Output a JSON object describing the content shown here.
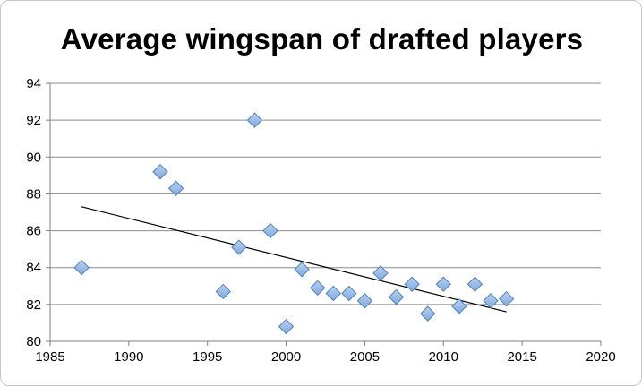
{
  "chart_data": {
    "type": "scatter",
    "title": "Average wingspan of drafted players",
    "xlabel": "",
    "ylabel": "",
    "xlim": [
      1985,
      2020
    ],
    "ylim": [
      80,
      94
    ],
    "xticks": [
      1985,
      1990,
      1995,
      2000,
      2005,
      2010,
      2015,
      2020
    ],
    "yticks": [
      80,
      82,
      84,
      86,
      88,
      90,
      92,
      94
    ],
    "grid": "horizontal",
    "legend": "none",
    "series": [
      {
        "marker": "diamond",
        "color": "#8db4e2",
        "points": [
          {
            "x": 1987,
            "y": 84.0
          },
          {
            "x": 1992,
            "y": 89.2
          },
          {
            "x": 1993,
            "y": 88.3
          },
          {
            "x": 1996,
            "y": 82.7
          },
          {
            "x": 1997,
            "y": 85.1
          },
          {
            "x": 1998,
            "y": 92.0
          },
          {
            "x": 1999,
            "y": 86.0
          },
          {
            "x": 2000,
            "y": 80.8
          },
          {
            "x": 2001,
            "y": 83.9
          },
          {
            "x": 2002,
            "y": 82.9
          },
          {
            "x": 2003,
            "y": 82.6
          },
          {
            "x": 2004,
            "y": 82.6
          },
          {
            "x": 2005,
            "y": 82.2
          },
          {
            "x": 2006,
            "y": 83.7
          },
          {
            "x": 2007,
            "y": 82.4
          },
          {
            "x": 2008,
            "y": 83.1
          },
          {
            "x": 2009,
            "y": 81.5
          },
          {
            "x": 2010,
            "y": 83.1
          },
          {
            "x": 2011,
            "y": 81.9
          },
          {
            "x": 2012,
            "y": 83.1
          },
          {
            "x": 2013,
            "y": 82.2
          },
          {
            "x": 2014,
            "y": 82.3
          }
        ]
      }
    ],
    "trendline": {
      "type": "linear",
      "color": "#000000",
      "x": [
        1987,
        2014
      ],
      "y": [
        87.3,
        81.6
      ]
    }
  }
}
